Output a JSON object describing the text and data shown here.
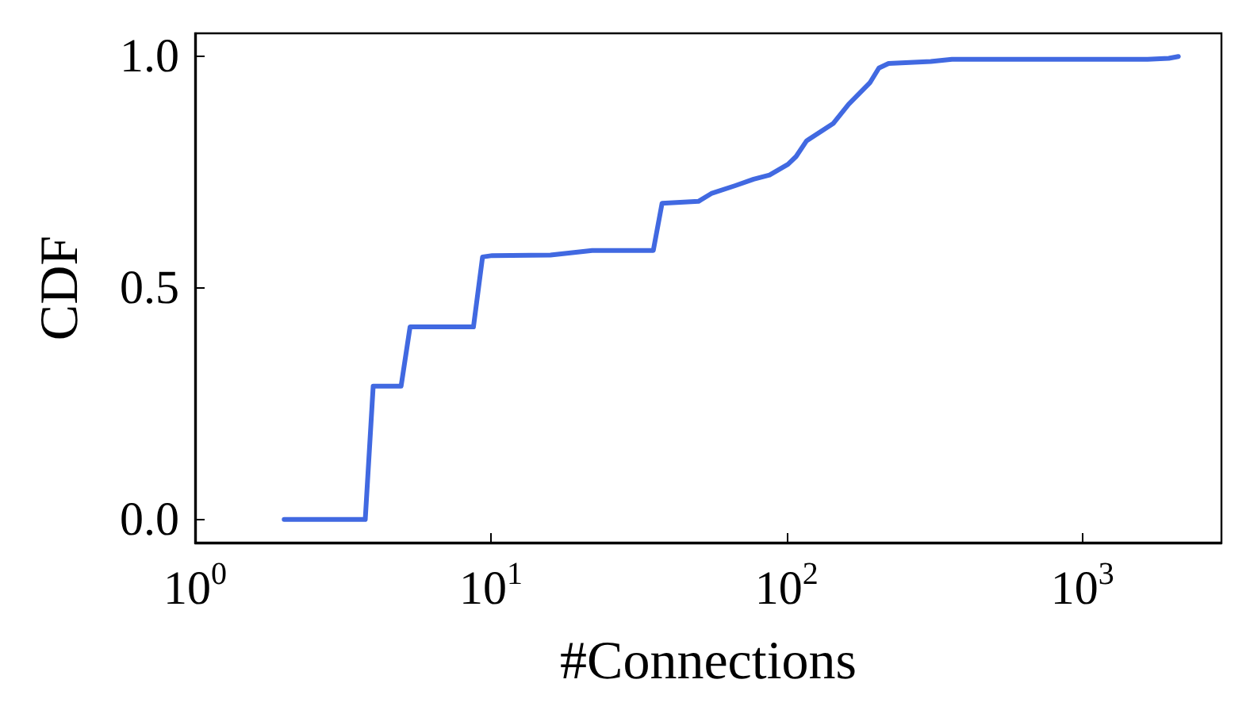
{
  "chart_data": {
    "type": "line",
    "xlabel": "#Connections",
    "ylabel": "CDF",
    "log": "x",
    "grid": false,
    "marker": "none",
    "line_style": "solid",
    "xlim": [
      1,
      2950
    ],
    "ylim": [
      -0.05,
      1.05
    ],
    "xticks": [
      {
        "value": 1,
        "label": "10$^{0}$"
      },
      {
        "value": 10,
        "label": "10$^{1}$"
      },
      {
        "value": 100,
        "label": "10$^{2}$"
      },
      {
        "value": 1000,
        "label": "10$^{3}$"
      }
    ],
    "yticks": [
      {
        "value": 0,
        "label": "0.0"
      },
      {
        "value": 0.5,
        "label": "0.5"
      },
      {
        "value": 1,
        "label": "1.0"
      }
    ],
    "series": [
      {
        "color": "#4169e1",
        "x": [
          2,
          3.76,
          4,
          4.97,
          5.33,
          8.73,
          9.37,
          10.1,
          15.9,
          22,
          35.4,
          37.9,
          50.3,
          55.6,
          67,
          77.3,
          87.5,
          101,
          107.6,
          116.8,
          143.5,
          162,
          191,
          205,
          221,
          307,
          362,
          1660,
          1958,
          2109
        ],
        "values": [
          0,
          0,
          0.288,
          0.288,
          0.416,
          0.416,
          0.567,
          0.57,
          0.571,
          0.581,
          0.581,
          0.683,
          0.687,
          0.704,
          0.721,
          0.735,
          0.744,
          0.767,
          0.784,
          0.818,
          0.855,
          0.897,
          0.943,
          0.975,
          0.985,
          0.989,
          0.994,
          0.994,
          0.996,
          1.0
        ]
      }
    ]
  }
}
